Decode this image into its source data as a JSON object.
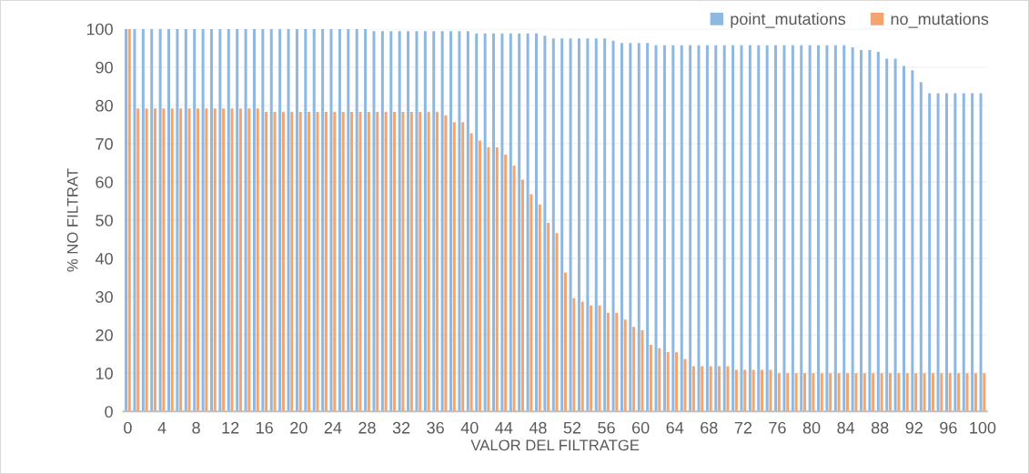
{
  "chart_data": {
    "type": "bar",
    "xlabel": "VALOR DEL FILTRATGE",
    "ylabel": "% NO FILTRAT",
    "categories": [
      "0",
      null,
      null,
      null,
      "4",
      null,
      null,
      null,
      "8",
      null,
      null,
      null,
      "12",
      null,
      null,
      null,
      "16",
      null,
      null,
      null,
      "20",
      null,
      null,
      null,
      "24",
      null,
      null,
      null,
      "28",
      null,
      null,
      null,
      "32",
      null,
      null,
      null,
      "36",
      null,
      null,
      null,
      "40",
      null,
      null,
      null,
      "44",
      null,
      null,
      null,
      "48",
      null,
      null,
      null,
      "52",
      null,
      null,
      null,
      "56",
      null,
      null,
      null,
      "60",
      null,
      null,
      null,
      "64",
      null,
      null,
      null,
      "68",
      null,
      null,
      null,
      "72",
      null,
      null,
      null,
      "76",
      null,
      null,
      null,
      "80",
      null,
      null,
      null,
      "84",
      null,
      null,
      null,
      "88",
      null,
      null,
      null,
      "92",
      null,
      null,
      null,
      "96",
      null,
      null,
      null,
      "100"
    ],
    "series": [
      {
        "name": "point_mutations",
        "color": "#8db8e2",
        "values": [
          100,
          100,
          100,
          100,
          100,
          100,
          100,
          100,
          100,
          100,
          100,
          100,
          100,
          100,
          100,
          100,
          100,
          100,
          100,
          100,
          100,
          100,
          100,
          100,
          100,
          100,
          100,
          100,
          100,
          99.4,
          99.4,
          99.4,
          99.4,
          99.4,
          99.4,
          99.4,
          99.4,
          99.4,
          99.4,
          99.4,
          99.4,
          98.8,
          98.8,
          98.8,
          98.8,
          98.8,
          98.8,
          98.8,
          98.8,
          98.2,
          97.5,
          97.5,
          97.5,
          97.5,
          97.5,
          97.5,
          97.5,
          96.9,
          96.3,
          96.3,
          96.3,
          96.3,
          95.7,
          95.7,
          95.7,
          95.7,
          95.7,
          95.7,
          95.7,
          95.7,
          95.7,
          95.7,
          95.7,
          95.7,
          95.7,
          95.7,
          95.7,
          95.7,
          95.7,
          95.7,
          95.7,
          95.7,
          95.7,
          95.7,
          95.7,
          95.2,
          94.5,
          94.5,
          94.0,
          92.2,
          92.2,
          90.3,
          89.2,
          86.1,
          83.2,
          83.2,
          83.2,
          83.2,
          83.2,
          83.2,
          83.2
        ]
      },
      {
        "name": "no_mutations",
        "color": "#f4a46e",
        "values": [
          100,
          79.2,
          79.2,
          79.2,
          79.2,
          79.2,
          79.2,
          79.2,
          79.2,
          79.2,
          79.2,
          79.2,
          79.2,
          79.2,
          79.2,
          79.2,
          78.3,
          78.3,
          78.3,
          78.3,
          78.3,
          78.3,
          78.3,
          78.3,
          78.3,
          78.3,
          78.3,
          78.3,
          78.3,
          78.3,
          78.3,
          78.3,
          78.3,
          78.3,
          78.3,
          78.3,
          78.3,
          77.4,
          75.6,
          75.6,
          72.7,
          70.8,
          69.0,
          69.0,
          67.1,
          64.3,
          60.6,
          56.8,
          54.1,
          49.3,
          46.6,
          36.3,
          29.6,
          28.7,
          27.7,
          27.7,
          25.8,
          25.8,
          24.0,
          22.1,
          21.2,
          17.4,
          16.5,
          15.5,
          15.5,
          13.7,
          11.8,
          11.8,
          11.8,
          11.8,
          11.8,
          10.9,
          10.9,
          10.9,
          10.9,
          10.9,
          10.0,
          10.0,
          10.0,
          10.0,
          10.0,
          10.0,
          10.0,
          10.0,
          10.0,
          10.0,
          10.0,
          10.0,
          10.0,
          10.0,
          10.0,
          10.0,
          10.0,
          10.0,
          10.0,
          10.0,
          10.0,
          10.0,
          10.0,
          10.0,
          10.0
        ]
      }
    ],
    "ylim": [
      0,
      100
    ],
    "yticks": [
      0,
      10,
      20,
      30,
      40,
      50,
      60,
      70,
      80,
      90,
      100
    ],
    "grid": "y",
    "legend": "top right"
  }
}
